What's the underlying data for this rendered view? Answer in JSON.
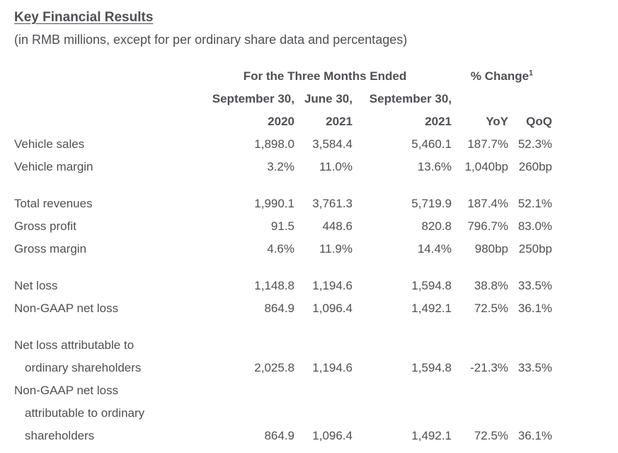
{
  "page": {
    "title": "Key Financial Results",
    "subtitle": "(in RMB millions, except for per ordinary share data and percentages)"
  },
  "table": {
    "header": {
      "period_group": "For the Three Months Ended",
      "change_group": "% Change",
      "change_group_footnote": "1",
      "period_dates": [
        "September 30,",
        "June 30,",
        "September 30,"
      ],
      "col_years": [
        "2020",
        "2021",
        "2021"
      ],
      "change_cols": [
        "YoY",
        "QoQ"
      ]
    },
    "rows": [
      {
        "label_lines": [
          "Vehicle sales"
        ],
        "values": [
          "1,898.0",
          "3,584.4",
          "5,460.1",
          "187.7%",
          "52.3%"
        ]
      },
      {
        "label_lines": [
          "Vehicle margin"
        ],
        "values": [
          "3.2%",
          "11.0%",
          "13.6%",
          "1,040bp",
          "260bp"
        ]
      },
      {
        "spacer": true
      },
      {
        "label_lines": [
          "Total revenues"
        ],
        "values": [
          "1,990.1",
          "3,761.3",
          "5,719.9",
          "187.4%",
          "52.1%"
        ]
      },
      {
        "label_lines": [
          "Gross profit"
        ],
        "values": [
          "91.5",
          "448.6",
          "820.8",
          "796.7%",
          "83.0%"
        ]
      },
      {
        "label_lines": [
          "Gross margin"
        ],
        "values": [
          "4.6%",
          "11.9%",
          "14.4%",
          "980bp",
          "250bp"
        ]
      },
      {
        "spacer": true
      },
      {
        "label_lines": [
          "Net loss"
        ],
        "values": [
          "1,148.8",
          "1,194.6",
          "1,594.8",
          "38.8%",
          "33.5%"
        ]
      },
      {
        "label_lines": [
          "Non-GAAP net loss"
        ],
        "values": [
          "864.9",
          "1,096.4",
          "1,492.1",
          "72.5%",
          "36.1%"
        ]
      },
      {
        "spacer": true
      },
      {
        "label_lines": [
          "Net loss attributable to",
          "ordinary shareholders"
        ],
        "values": [
          "2,025.8",
          "1,194.6",
          "1,594.8",
          "-21.3%",
          "33.5%"
        ]
      },
      {
        "label_lines": [
          "Non-GAAP net loss",
          "attributable to ordinary",
          "shareholders"
        ],
        "values": [
          "864.9",
          "1,096.4",
          "1,492.1",
          "72.5%",
          "36.1%"
        ]
      }
    ]
  },
  "colors": {
    "text": "#4d5054",
    "background": "#ffffff"
  }
}
